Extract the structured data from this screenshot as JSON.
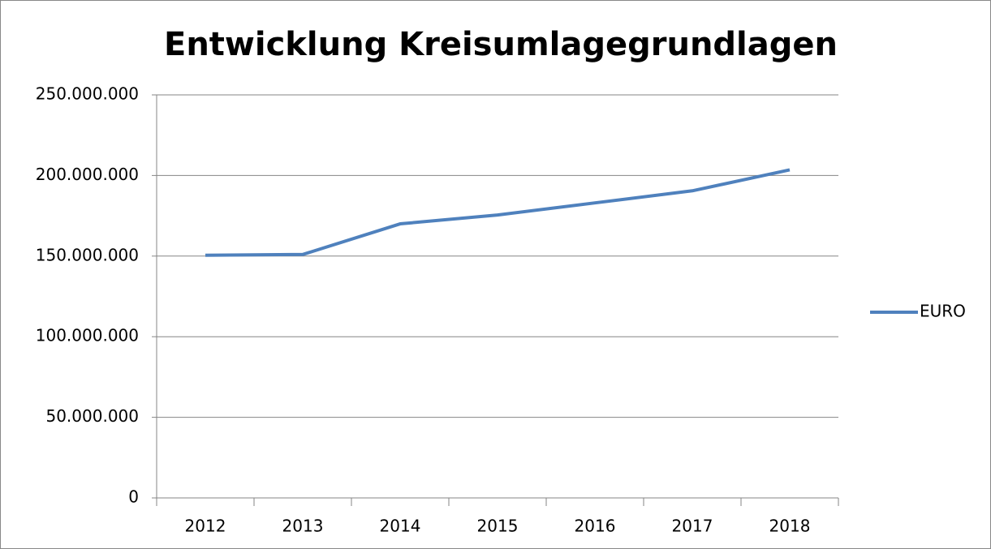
{
  "chart_data": {
    "type": "line",
    "title": "Entwicklung Kreisumlagegrundlagen",
    "categories": [
      "2012",
      "2013",
      "2014",
      "2015",
      "2016",
      "2017",
      "2018"
    ],
    "series": [
      {
        "name": "EURO",
        "color": "#4f81bd",
        "values": [
          150500000,
          151000000,
          170000000,
          175500000,
          183000000,
          190500000,
          203500000
        ]
      }
    ],
    "ylim": [
      0,
      250000000
    ],
    "yticks": [
      0,
      {
        "value": 50000000,
        "label": "50.000.000"
      },
      {
        "value": 100000000,
        "label": "100.000.000"
      },
      {
        "value": 150000000,
        "label": "150.000.000"
      },
      {
        "value": 200000000,
        "label": "200.000.000"
      },
      {
        "value": 250000000,
        "label": "250.000.000"
      }
    ],
    "grid": true,
    "legend": "right"
  }
}
